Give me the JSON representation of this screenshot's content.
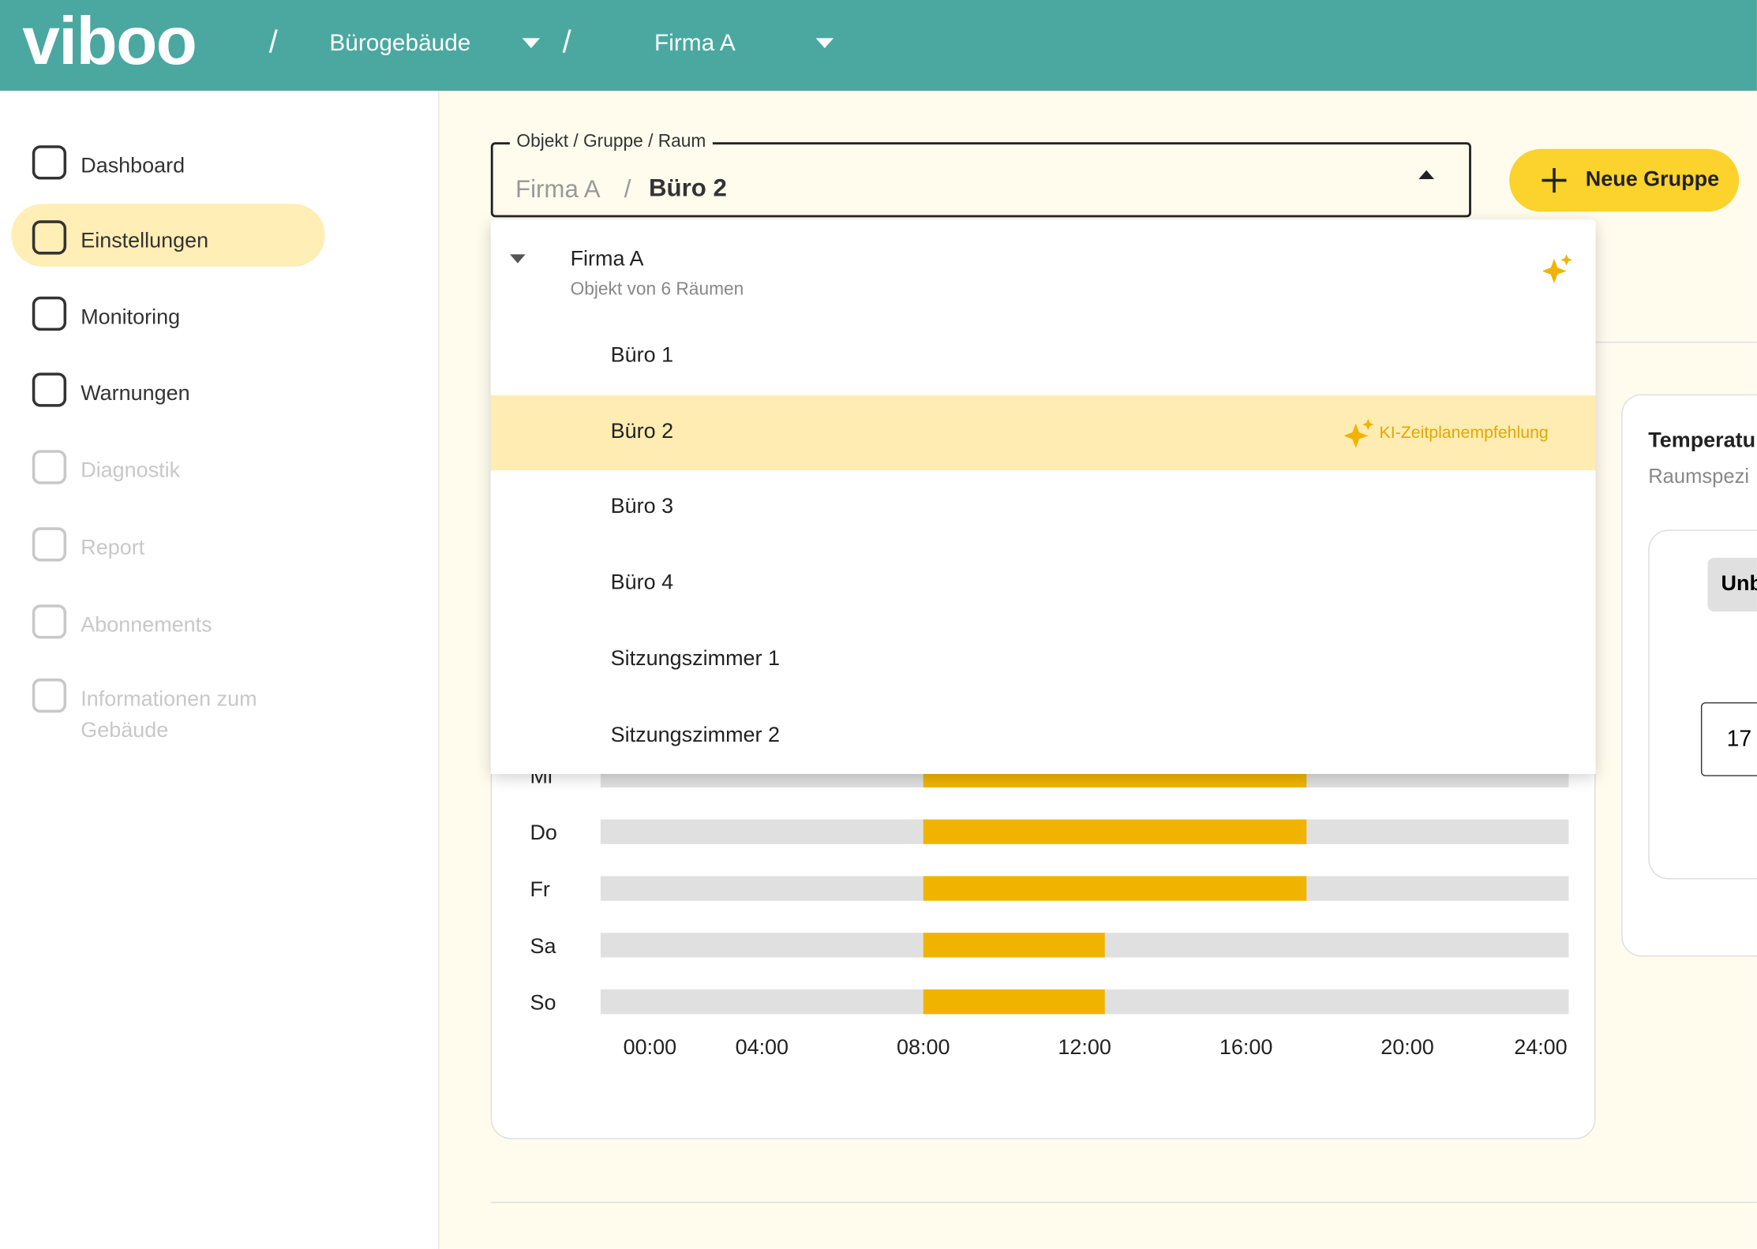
{
  "header": {
    "logo": "viboo",
    "separator": "/",
    "building": "Bürogebäude",
    "company": "Firma A"
  },
  "nav": [
    {
      "label": "Dashboard",
      "enabled": true
    },
    {
      "label": "Einstellungen",
      "enabled": true,
      "active": true
    },
    {
      "label": "Monitoring",
      "enabled": true
    },
    {
      "label": "Warnungen",
      "enabled": true
    },
    {
      "label": "Diagnostik",
      "enabled": false
    },
    {
      "label": "Report",
      "enabled": false
    },
    {
      "label": "Abonnements",
      "enabled": false
    },
    {
      "label": "Informationen zum Gebäude",
      "enabled": false
    }
  ],
  "selector": {
    "label": "Objekt / Gruppe / Raum",
    "path": [
      "Firma A",
      "Büro 2"
    ],
    "separator": "/"
  },
  "button": "Neue Gruppe",
  "dropdown": {
    "group": "Firma A",
    "subtitle": "Objekt von 6 Räumen",
    "rooms": [
      "Büro 1",
      "Büro 2",
      "Büro 3",
      "Büro 4",
      "Sitzungszimmer 1",
      "Sitzungszimmer 2"
    ],
    "selected": 1,
    "badge": "KI-Zeitplanempfehlung"
  },
  "chart_data": {
    "type": "schedule",
    "categories": [
      "Mi",
      "Do",
      "Fr",
      "Sa",
      "So"
    ],
    "start": [
      8,
      8,
      8,
      8,
      8
    ],
    "end": [
      17.5,
      17.5,
      17.5,
      12.5,
      12.5
    ],
    "color": "#f0b400",
    "track_color": "#e0e0e0",
    "xlim": [
      0,
      24
    ],
    "xticks": [
      {
        "value": 0,
        "label": "00:00"
      },
      {
        "value": 4,
        "label": "04:00"
      },
      {
        "value": 8,
        "label": "08:00"
      },
      {
        "value": 12,
        "label": "12:00"
      },
      {
        "value": 16,
        "label": "16:00"
      },
      {
        "value": 20,
        "label": "20:00"
      },
      {
        "value": 24,
        "label": "24:00"
      }
    ]
  },
  "side_panel": {
    "title": "Temperatu",
    "subtitle": "Raumspezi",
    "chip": "Unb",
    "input": "17"
  }
}
